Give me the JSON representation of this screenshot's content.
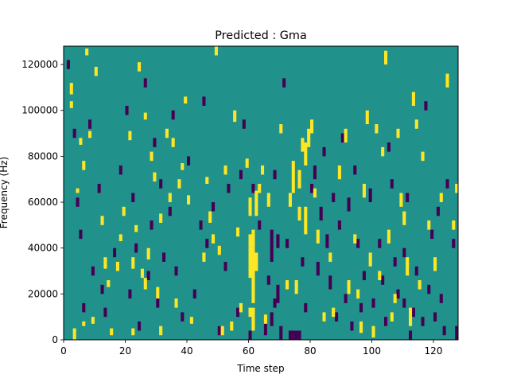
{
  "chart_data": {
    "type": "heatmap",
    "title": "Predicted : Gma",
    "xlabel": "Time step",
    "ylabel": "Frequency (Hz)",
    "xlim": [
      0,
      128
    ],
    "ylim": [
      0,
      128000
    ],
    "xticks": [
      0,
      20,
      40,
      60,
      80,
      100,
      120
    ],
    "yticks": [
      0,
      20000,
      40000,
      60000,
      80000,
      100000,
      120000
    ],
    "n_time": 128,
    "n_freq": 128,
    "freq_bin_hz": 1000,
    "grid": false,
    "legend": "none",
    "colormap": "viridis",
    "levels": {
      "low": "#440154",
      "mid": "#21918c",
      "high": "#fde725"
    },
    "background_level": "mid",
    "cells": {
      "high": [
        [
          2,
          107,
          112
        ],
        [
          2,
          101,
          104
        ],
        [
          3,
          0,
          5
        ],
        [
          4,
          64,
          66
        ],
        [
          5,
          85,
          88
        ],
        [
          6,
          74,
          78
        ],
        [
          6,
          6,
          8
        ],
        [
          7,
          124,
          127
        ],
        [
          8,
          88,
          91
        ],
        [
          9,
          7,
          10
        ],
        [
          10,
          115,
          119
        ],
        [
          12,
          50,
          54
        ],
        [
          13,
          31,
          36
        ],
        [
          14,
          23,
          26
        ],
        [
          15,
          2,
          5
        ],
        [
          17,
          30,
          34
        ],
        [
          18,
          43,
          46
        ],
        [
          19,
          54,
          58
        ],
        [
          21,
          87,
          91
        ],
        [
          22,
          31,
          36
        ],
        [
          22,
          2,
          5
        ],
        [
          23,
          47,
          50
        ],
        [
          24,
          117,
          121
        ],
        [
          25,
          27,
          31
        ],
        [
          26,
          96,
          99
        ],
        [
          26,
          22,
          27
        ],
        [
          27,
          35,
          40
        ],
        [
          28,
          78,
          82
        ],
        [
          29,
          69,
          73
        ],
        [
          30,
          18,
          23
        ],
        [
          31,
          51,
          55
        ],
        [
          31,
          2,
          6
        ],
        [
          33,
          88,
          92
        ],
        [
          34,
          60,
          64
        ],
        [
          35,
          84,
          88
        ],
        [
          36,
          14,
          18
        ],
        [
          37,
          66,
          70
        ],
        [
          38,
          74,
          77
        ],
        [
          39,
          103,
          106
        ],
        [
          40,
          59,
          63
        ],
        [
          41,
          7,
          10
        ],
        [
          45,
          34,
          38
        ],
        [
          46,
          68,
          71
        ],
        [
          47,
          51,
          56
        ],
        [
          48,
          42,
          46
        ],
        [
          49,
          124,
          128
        ],
        [
          50,
          37,
          41
        ],
        [
          51,
          2,
          6
        ],
        [
          52,
          72,
          76
        ],
        [
          54,
          4,
          8
        ],
        [
          55,
          95,
          100
        ],
        [
          56,
          45,
          49
        ],
        [
          57,
          12,
          16
        ],
        [
          59,
          75,
          79
        ],
        [
          60,
          10,
          14
        ],
        [
          60,
          54,
          62
        ],
        [
          60,
          27,
          46
        ],
        [
          61,
          40,
          48
        ],
        [
          61,
          16,
          40
        ],
        [
          61,
          4,
          14
        ],
        [
          62,
          54,
          65
        ],
        [
          62,
          30,
          38
        ],
        [
          63,
          64,
          68
        ],
        [
          64,
          72,
          76
        ],
        [
          65,
          7,
          11
        ],
        [
          66,
          58,
          64
        ],
        [
          70,
          90,
          94
        ],
        [
          72,
          22,
          26
        ],
        [
          73,
          58,
          64
        ],
        [
          74,
          64,
          78
        ],
        [
          75,
          20,
          26
        ],
        [
          76,
          66,
          74
        ],
        [
          76,
          52,
          58
        ],
        [
          77,
          82,
          88
        ],
        [
          78,
          76,
          86
        ],
        [
          78,
          46,
          58
        ],
        [
          79,
          84,
          92
        ],
        [
          80,
          90,
          96
        ],
        [
          81,
          62,
          66
        ],
        [
          82,
          42,
          48
        ],
        [
          84,
          8,
          12
        ],
        [
          86,
          34,
          38
        ],
        [
          87,
          10,
          14
        ],
        [
          89,
          70,
          76
        ],
        [
          91,
          86,
          92
        ],
        [
          92,
          20,
          26
        ],
        [
          94,
          42,
          46
        ],
        [
          95,
          18,
          22
        ],
        [
          96,
          3,
          8
        ],
        [
          97,
          62,
          68
        ],
        [
          98,
          94,
          100
        ],
        [
          99,
          32,
          38
        ],
        [
          100,
          1,
          6
        ],
        [
          101,
          90,
          94
        ],
        [
          102,
          26,
          30
        ],
        [
          103,
          80,
          84
        ],
        [
          104,
          120,
          126
        ],
        [
          105,
          42,
          48
        ],
        [
          106,
          8,
          12
        ],
        [
          107,
          16,
          20
        ],
        [
          108,
          88,
          92
        ],
        [
          109,
          58,
          64
        ],
        [
          110,
          50,
          56
        ],
        [
          111,
          28,
          36
        ],
        [
          112,
          6,
          14
        ],
        [
          113,
          102,
          108
        ],
        [
          114,
          92,
          96
        ],
        [
          115,
          22,
          26
        ],
        [
          116,
          78,
          82
        ],
        [
          118,
          48,
          52
        ],
        [
          120,
          30,
          36
        ],
        [
          122,
          60,
          64
        ],
        [
          124,
          110,
          116
        ],
        [
          126,
          48,
          52
        ],
        [
          127,
          64,
          68
        ]
      ],
      "low": [
        [
          1,
          118,
          122
        ],
        [
          3,
          88,
          92
        ],
        [
          4,
          58,
          62
        ],
        [
          5,
          44,
          48
        ],
        [
          6,
          12,
          16
        ],
        [
          8,
          92,
          96
        ],
        [
          9,
          28,
          32
        ],
        [
          11,
          64,
          68
        ],
        [
          12,
          20,
          24
        ],
        [
          13,
          10,
          14
        ],
        [
          16,
          36,
          40
        ],
        [
          18,
          72,
          76
        ],
        [
          20,
          98,
          102
        ],
        [
          21,
          18,
          22
        ],
        [
          22,
          60,
          64
        ],
        [
          23,
          38,
          42
        ],
        [
          24,
          4,
          8
        ],
        [
          26,
          110,
          114
        ],
        [
          27,
          26,
          30
        ],
        [
          28,
          48,
          52
        ],
        [
          29,
          84,
          88
        ],
        [
          30,
          14,
          18
        ],
        [
          31,
          66,
          70
        ],
        [
          32,
          34,
          38
        ],
        [
          34,
          54,
          58
        ],
        [
          35,
          96,
          100
        ],
        [
          36,
          28,
          32
        ],
        [
          38,
          8,
          12
        ],
        [
          40,
          76,
          80
        ],
        [
          42,
          18,
          22
        ],
        [
          44,
          48,
          52
        ],
        [
          45,
          102,
          106
        ],
        [
          46,
          40,
          44
        ],
        [
          48,
          56,
          60
        ],
        [
          50,
          2,
          6
        ],
        [
          52,
          30,
          34
        ],
        [
          53,
          64,
          68
        ],
        [
          56,
          10,
          14
        ],
        [
          57,
          70,
          74
        ],
        [
          58,
          92,
          96
        ],
        [
          60,
          0,
          4
        ],
        [
          61,
          64,
          68
        ],
        [
          63,
          48,
          52
        ],
        [
          65,
          2,
          8
        ],
        [
          66,
          24,
          28
        ],
        [
          67,
          34,
          48
        ],
        [
          68,
          70,
          74
        ],
        [
          69,
          16,
          24
        ],
        [
          70,
          0,
          6
        ],
        [
          71,
          110,
          114
        ],
        [
          72,
          40,
          44
        ],
        [
          73,
          0,
          4
        ],
        [
          74,
          0,
          4
        ],
        [
          75,
          0,
          4
        ],
        [
          76,
          0,
          4
        ],
        [
          77,
          32,
          36
        ],
        [
          78,
          12,
          16
        ],
        [
          80,
          64,
          68
        ],
        [
          81,
          70,
          76
        ],
        [
          82,
          28,
          34
        ],
        [
          83,
          52,
          58
        ],
        [
          84,
          80,
          84
        ],
        [
          85,
          40,
          46
        ],
        [
          86,
          22,
          28
        ],
        [
          87,
          60,
          64
        ],
        [
          88,
          8,
          12
        ],
        [
          89,
          48,
          52
        ],
        [
          90,
          86,
          90
        ],
        [
          91,
          16,
          20
        ],
        [
          92,
          56,
          62
        ],
        [
          93,
          4,
          8
        ],
        [
          94,
          72,
          76
        ],
        [
          95,
          40,
          44
        ],
        [
          96,
          12,
          16
        ],
        [
          97,
          26,
          30
        ],
        [
          99,
          60,
          66
        ],
        [
          100,
          14,
          18
        ],
        [
          102,
          40,
          44
        ],
        [
          103,
          24,
          28
        ],
        [
          104,
          6,
          10
        ],
        [
          105,
          82,
          86
        ],
        [
          106,
          66,
          70
        ],
        [
          107,
          32,
          36
        ],
        [
          108,
          18,
          22
        ],
        [
          110,
          36,
          40
        ],
        [
          111,
          60,
          64
        ],
        [
          113,
          10,
          14
        ],
        [
          114,
          28,
          32
        ],
        [
          116,
          6,
          10
        ],
        [
          117,
          100,
          104
        ],
        [
          118,
          20,
          24
        ],
        [
          119,
          44,
          48
        ],
        [
          120,
          8,
          12
        ],
        [
          121,
          54,
          58
        ],
        [
          122,
          16,
          20
        ],
        [
          123,
          2,
          6
        ],
        [
          124,
          66,
          70
        ],
        [
          126,
          40,
          44
        ],
        [
          127,
          0,
          6
        ],
        [
          110,
          14,
          18
        ],
        [
          112,
          0,
          4
        ],
        [
          67,
          6,
          12
        ],
        [
          68,
          14,
          18
        ],
        [
          69,
          40,
          46
        ]
      ]
    }
  }
}
